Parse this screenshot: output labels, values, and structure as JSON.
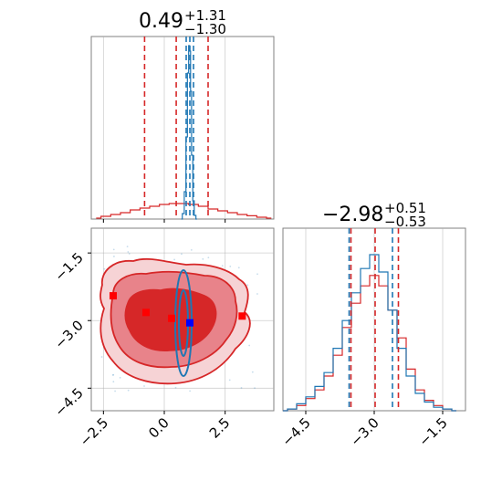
{
  "colors": {
    "red": "#d62728",
    "blue": "#1f77b4",
    "grid": "#b0b0b0",
    "spine": "#808080",
    "fill_dark": "#d62728",
    "fill_mid": "#e8838a",
    "fill_light": "#f6d3d5",
    "marker_red": "#ff0000",
    "marker_blue": "#0000ff"
  },
  "chart_data": [
    {
      "type": "histogram",
      "panel": "param-1-marginal",
      "title": {
        "main": "0.49",
        "plus": "+1.31",
        "minus": "−1.30"
      },
      "xlim": [
        -3.0,
        4.5
      ],
      "ylim": [
        0,
        1.0
      ],
      "show_yticks": false,
      "red_quantiles": [
        -0.81,
        0.49,
        1.8
      ],
      "blue_quantiles": [
        0.9,
        1.05,
        1.2
      ],
      "red_series": {
        "x": [
          -2.8,
          -2.4,
          -2.0,
          -1.6,
          -1.2,
          -0.8,
          -0.4,
          0.0,
          0.4,
          0.8,
          1.2,
          1.6,
          2.0,
          2.4,
          2.8,
          3.2,
          3.6,
          4.0,
          4.4
        ],
        "y": [
          0.005,
          0.015,
          0.025,
          0.035,
          0.05,
          0.06,
          0.07,
          0.08,
          0.085,
          0.085,
          0.08,
          0.07,
          0.055,
          0.045,
          0.035,
          0.025,
          0.018,
          0.01,
          0.005
        ]
      },
      "blue_series": {
        "x": [
          0.7,
          0.78,
          0.86,
          0.92,
          0.98,
          1.02,
          1.06,
          1.1,
          1.14,
          1.2,
          1.26,
          1.34
        ],
        "y": [
          0.0,
          0.03,
          0.15,
          0.45,
          0.8,
          0.95,
          0.92,
          0.7,
          0.35,
          0.1,
          0.02,
          0.0
        ]
      }
    },
    {
      "type": "contour",
      "panel": "joint-2d",
      "xlim": [
        -3.0,
        4.5
      ],
      "ylim": [
        -5.0,
        -0.95
      ],
      "x_ticks": [
        -2.5,
        0.0,
        2.5
      ],
      "x_tick_labels": [
        "−2.5",
        "0.0",
        "2.5"
      ],
      "y_ticks": [
        -4.5,
        -3.0,
        -1.5
      ],
      "y_tick_labels": [
        "−4.5",
        "−3.0",
        "−1.5"
      ],
      "red_markers": [
        [
          -2.1,
          -2.45
        ],
        [
          -0.75,
          -2.82
        ],
        [
          0.3,
          -2.95
        ],
        [
          3.2,
          -2.9
        ]
      ],
      "blue_markers": [
        [
          1.05,
          -3.05
        ]
      ]
    },
    {
      "type": "histogram",
      "panel": "param-2-marginal",
      "title": {
        "main": "−2.98",
        "plus": "+0.51",
        "minus": "−0.53"
      },
      "xlim": [
        -5.0,
        -1.0
      ],
      "ylim": [
        0,
        1.0
      ],
      "x_ticks": [
        -4.5,
        -3.0,
        -1.5
      ],
      "x_tick_labels": [
        "−4.5",
        "−3.0",
        "−1.5"
      ],
      "show_yticks": false,
      "red_quantiles": [
        -3.51,
        -2.98,
        -2.47
      ],
      "blue_quantiles": [
        -3.55,
        -2.6
      ],
      "red_series": {
        "x": [
          -5.0,
          -4.8,
          -4.6,
          -4.4,
          -4.2,
          -4.0,
          -3.8,
          -3.6,
          -3.4,
          -3.2,
          -3.0,
          -2.8,
          -2.6,
          -2.4,
          -2.2,
          -2.0,
          -1.8,
          -1.6,
          -1.4,
          -1.2
        ],
        "y": [
          0.0,
          0.01,
          0.03,
          0.07,
          0.12,
          0.2,
          0.32,
          0.48,
          0.62,
          0.72,
          0.78,
          0.72,
          0.58,
          0.42,
          0.24,
          0.12,
          0.06,
          0.03,
          0.01,
          0.0
        ]
      },
      "blue_series": {
        "x": [
          -5.0,
          -4.8,
          -4.6,
          -4.4,
          -4.2,
          -4.0,
          -3.8,
          -3.6,
          -3.4,
          -3.2,
          -3.0,
          -2.8,
          -2.6,
          -2.4,
          -2.2,
          -2.0,
          -1.8,
          -1.6,
          -1.4,
          -1.2
        ],
        "y": [
          0.0,
          0.01,
          0.04,
          0.08,
          0.14,
          0.22,
          0.36,
          0.52,
          0.68,
          0.82,
          0.9,
          0.8,
          0.58,
          0.36,
          0.2,
          0.1,
          0.05,
          0.02,
          0.01,
          0.0
        ]
      }
    }
  ]
}
